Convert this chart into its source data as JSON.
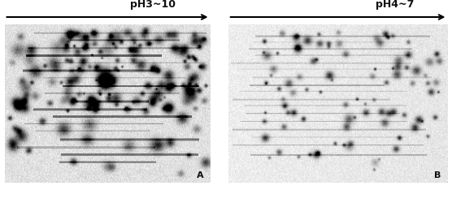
{
  "fig_width": 5.56,
  "fig_height": 2.5,
  "dpi": 100,
  "panel_A_label": "A",
  "panel_B_label": "B",
  "label_pH_A": "pH3~10",
  "label_pH_B": "pH4~7",
  "text_color": "#111111",
  "font_size_label": 9,
  "font_size_panel": 8
}
